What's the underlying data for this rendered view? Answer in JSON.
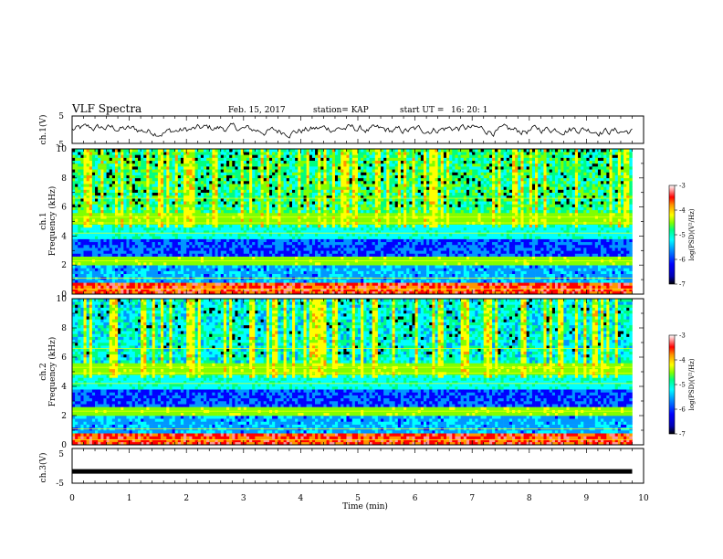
{
  "header": {
    "title": "VLF Spectra",
    "date": "Feb. 15, 2017",
    "station": "station= KAP",
    "start_label": "start  UT =",
    "start_time": "16: 20: 1"
  },
  "chart_data": [
    {
      "type": "line",
      "panel": "ch1-waveform",
      "ylabel": "ch.1(V)",
      "ylim": [
        -5,
        5
      ],
      "yticks": [
        "5",
        "-5"
      ],
      "xlim": [
        0,
        10
      ],
      "series": [
        {
          "color": "#000000",
          "approx_level": 0.0,
          "approx_range": [
            -2,
            2
          ]
        }
      ]
    },
    {
      "type": "heatmap",
      "panel": "ch1-spectrogram",
      "ylabel_line1": "ch.1",
      "ylabel_line2": "Frequency  (kHz)",
      "ylim": [
        0,
        10
      ],
      "yticks": [
        "0",
        "2",
        "4",
        "6",
        "8",
        "10"
      ],
      "xlim": [
        0,
        9.8
      ],
      "colorbar": {
        "label": "log(PSD)(V²/Hz)",
        "range": [
          -7,
          -3
        ],
        "ticks": [
          "-3",
          "-4",
          "-5",
          "-6",
          "-7"
        ]
      }
    },
    {
      "type": "heatmap",
      "panel": "ch2-spectrogram",
      "ylabel_line1": "ch.2",
      "ylabel_line2": "Frequency  (kHz)",
      "ylim": [
        0,
        10
      ],
      "yticks": [
        "0",
        "2",
        "4",
        "6",
        "8",
        "10"
      ],
      "xlim": [
        0,
        9.8
      ],
      "colorbar": {
        "label": "log(PSD)(V²/Hz)",
        "range": [
          -7,
          -3
        ],
        "ticks": [
          "-3",
          "-4",
          "-5",
          "-6",
          "-7"
        ]
      }
    },
    {
      "type": "line",
      "panel": "ch3-waveform",
      "ylabel": "ch.3(V)",
      "ylim": [
        -5,
        5
      ],
      "yticks": [
        "5",
        "-5"
      ],
      "xlim": [
        0,
        10
      ],
      "series": [
        {
          "color": "#000000",
          "approx_level": -1.6
        }
      ]
    }
  ],
  "xaxis": {
    "label": "Time  (min)",
    "ticks": [
      "0",
      "1",
      "2",
      "3",
      "4",
      "5",
      "6",
      "7",
      "8",
      "9",
      "10"
    ]
  },
  "colors": {
    "colormap": [
      "#000000",
      "#0000b4",
      "#0000ff",
      "#0096ff",
      "#00ffff",
      "#00ff7f",
      "#7fff00",
      "#ffff00",
      "#ff9600",
      "#ff0000",
      "#ff9696",
      "#ffffff"
    ]
  }
}
